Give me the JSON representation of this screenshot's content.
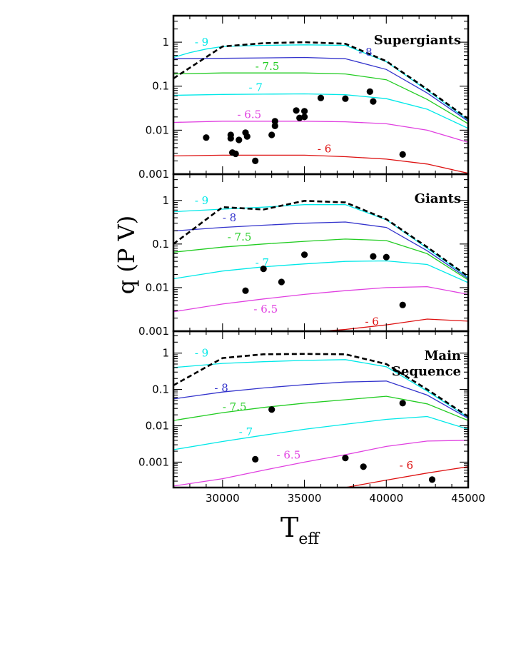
{
  "chart_data": {
    "type": "line",
    "xlabel": "T",
    "xlabel_sub": "eff",
    "ylabel": "q (P V)",
    "xlim": [
      27000,
      45000
    ],
    "xticks": [
      30000,
      35000,
      40000,
      45000
    ],
    "x_minor_step": 1000,
    "colors": {
      "-9": "#00e8e8",
      "-8": "#3333cc",
      "-7.5": "#22cc22",
      "-7": "#00e8e8",
      "-6.5": "#e040e0",
      "-6": "#dd1111",
      "envelope": "#000000",
      "points": "#000000"
    },
    "panels": [
      {
        "title": [
          "Supergiants"
        ],
        "ylim": [
          0.001,
          4
        ],
        "yticks": [
          0.001,
          0.01,
          0.1,
          1
        ],
        "ytick_labels": [
          "0.001",
          "0.01",
          "0.1",
          "1"
        ],
        "series": [
          {
            "name": "-9",
            "label": "- 9",
            "x": [
              27000,
              28000,
              29000,
              30000,
              32500,
              35000,
              37500,
              40000,
              42500,
              45000
            ],
            "y": [
              0.45,
              0.58,
              0.7,
              0.8,
              0.85,
              0.87,
              0.85,
              0.36,
              0.08,
              0.017
            ],
            "label_at": [
              28300,
              1.0
            ]
          },
          {
            "name": "-8",
            "label": "- 8",
            "x": [
              27000,
              30000,
              32500,
              35000,
              37500,
              40000,
              42500,
              45000
            ],
            "y": [
              0.42,
              0.43,
              0.44,
              0.45,
              0.42,
              0.24,
              0.07,
              0.016
            ],
            "label_at": [
              38300,
              0.6
            ]
          },
          {
            "name": "-7.5",
            "label": "- 7.5",
            "x": [
              27000,
              30000,
              32500,
              35000,
              37500,
              40000,
              42500,
              45000
            ],
            "y": [
              0.19,
              0.2,
              0.2,
              0.2,
              0.19,
              0.14,
              0.05,
              0.014
            ],
            "label_at": [
              32000,
              0.28
            ]
          },
          {
            "name": "-7",
            "label": "- 7",
            "x": [
              27000,
              30000,
              32500,
              35000,
              37500,
              40000,
              42500,
              45000
            ],
            "y": [
              0.062,
              0.065,
              0.066,
              0.067,
              0.064,
              0.052,
              0.03,
              0.011
            ],
            "label_at": [
              31600,
              0.093
            ]
          },
          {
            "name": "-6.5",
            "label": "- 6.5",
            "x": [
              27000,
              30000,
              32500,
              35000,
              37500,
              40000,
              42500,
              45000
            ],
            "y": [
              0.015,
              0.016,
              0.016,
              0.016,
              0.0155,
              0.014,
              0.01,
              0.0053
            ],
            "label_at": [
              30900,
              0.0225
            ]
          },
          {
            "name": "-6",
            "label": "- 6",
            "x": [
              27000,
              30000,
              32500,
              35000,
              37500,
              40000,
              42500,
              45000
            ],
            "y": [
              0.0026,
              0.0027,
              0.0027,
              0.0027,
              0.0025,
              0.0022,
              0.0017,
              0.00105
            ],
            "label_at": [
              35800,
              0.0038
            ]
          },
          {
            "name": "envelope",
            "dashed": true,
            "x": [
              27000,
              30000,
              32500,
              35000,
              37500,
              40000,
              42500,
              45000
            ],
            "y": [
              0.15,
              0.8,
              0.95,
              1.0,
              0.92,
              0.37,
              0.085,
              0.018
            ]
          }
        ],
        "points": {
          "x": [
            29000,
            30500,
            30500,
            30600,
            30800,
            31000,
            31400,
            31500,
            32000,
            33000,
            33200,
            33200,
            34500,
            34700,
            35000,
            35000,
            36000,
            37500,
            39000,
            39200,
            41000
          ],
          "y": [
            0.0068,
            0.0078,
            0.0065,
            0.0031,
            0.0029,
            0.006,
            0.0088,
            0.0072,
            0.002,
            0.0078,
            0.016,
            0.0125,
            0.028,
            0.019,
            0.027,
            0.02,
            0.054,
            0.052,
            0.075,
            0.045,
            0.0028
          ]
        }
      },
      {
        "title": [
          "Giants"
        ],
        "ylim": [
          0.001,
          4
        ],
        "yticks": [
          0.001,
          0.01,
          0.1,
          1
        ],
        "ytick_labels": [
          "0.001",
          "0.01",
          "0.1",
          "1"
        ],
        "series": [
          {
            "name": "-9",
            "label": "- 9",
            "x": [
              27000,
              30000,
              32500,
              35000,
              37500,
              40000,
              42500,
              45000
            ],
            "y": [
              0.55,
              0.63,
              0.7,
              0.8,
              0.8,
              0.36,
              0.08,
              0.017
            ],
            "label_at": [
              28300,
              1.0
            ]
          },
          {
            "name": "-8",
            "label": "- 8",
            "x": [
              27000,
              30000,
              32500,
              35000,
              37500,
              40000,
              42500,
              45000
            ],
            "y": [
              0.2,
              0.24,
              0.27,
              0.3,
              0.32,
              0.24,
              0.07,
              0.016
            ],
            "label_at": [
              30000,
              0.4
            ]
          },
          {
            "name": "-7.5",
            "label": "- 7.5",
            "x": [
              27000,
              30000,
              32500,
              35000,
              37500,
              40000,
              42500,
              45000
            ],
            "y": [
              0.065,
              0.085,
              0.1,
              0.115,
              0.13,
              0.12,
              0.06,
              0.015
            ],
            "label_at": [
              30300,
              0.145
            ]
          },
          {
            "name": "-7",
            "label": "- 7",
            "x": [
              27000,
              30000,
              32500,
              35000,
              37500,
              40000,
              42500,
              45000
            ],
            "y": [
              0.016,
              0.024,
              0.03,
              0.035,
              0.04,
              0.041,
              0.034,
              0.013
            ],
            "label_at": [
              32000,
              0.037
            ]
          },
          {
            "name": "-6.5",
            "label": "- 6.5",
            "x": [
              27000,
              30000,
              32500,
              35000,
              37500,
              40000,
              42500,
              45000
            ],
            "y": [
              0.0028,
              0.0042,
              0.0055,
              0.007,
              0.0085,
              0.01,
              0.0105,
              0.007
            ],
            "label_at": [
              31900,
              0.0032
            ]
          },
          {
            "name": "-6",
            "label": "- 6",
            "x": [
              36000,
              37500,
              40000,
              42500,
              45000
            ],
            "y": [
              0.001,
              0.0011,
              0.0014,
              0.0019,
              0.0017
            ],
            "label_at": [
              38700,
              0.00165
            ]
          },
          {
            "name": "envelope",
            "dashed": true,
            "x": [
              27000,
              30000,
              32500,
              35000,
              37500,
              40000,
              42500,
              45000
            ],
            "y": [
              0.1,
              0.7,
              0.62,
              0.98,
              0.9,
              0.37,
              0.085,
              0.018
            ]
          }
        ],
        "points": {
          "x": [
            31400,
            32500,
            33600,
            35000,
            39200,
            40000,
            41000
          ],
          "y": [
            0.0085,
            0.027,
            0.0135,
            0.057,
            0.052,
            0.05,
            0.004
          ]
        }
      },
      {
        "title": [
          "Main",
          "Sequence"
        ],
        "ylim": [
          0.0002,
          4
        ],
        "yticks": [
          0.001,
          0.01,
          0.1,
          1
        ],
        "ytick_labels": [
          "0.001",
          "0.01",
          "0.1",
          "1"
        ],
        "series": [
          {
            "name": "-9",
            "label": "- 9",
            "x": [
              27000,
              30000,
              32500,
              35000,
              37500,
              40000,
              42500,
              45000
            ],
            "y": [
              0.4,
              0.52,
              0.58,
              0.63,
              0.66,
              0.42,
              0.09,
              0.017
            ],
            "label_at": [
              28300,
              1.0
            ]
          },
          {
            "name": "-8",
            "label": "- 8",
            "x": [
              27000,
              30000,
              32500,
              35000,
              37500,
              40000,
              42500,
              45000
            ],
            "y": [
              0.055,
              0.085,
              0.11,
              0.135,
              0.16,
              0.17,
              0.07,
              0.016
            ],
            "label_at": [
              29500,
              0.11
            ]
          },
          {
            "name": "-7.5",
            "label": "- 7.5",
            "x": [
              27000,
              30000,
              32500,
              35000,
              37500,
              40000,
              42500,
              45000
            ],
            "y": [
              0.014,
              0.023,
              0.032,
              0.042,
              0.052,
              0.065,
              0.04,
              0.014
            ],
            "label_at": [
              30000,
              0.033
            ]
          },
          {
            "name": "-7",
            "label": "- 7",
            "x": [
              27000,
              30000,
              32500,
              35000,
              37500,
              40000,
              42500,
              45000
            ],
            "y": [
              0.0022,
              0.0037,
              0.0055,
              0.008,
              0.011,
              0.015,
              0.018,
              0.008
            ],
            "label_at": [
              31000,
              0.0068
            ]
          },
          {
            "name": "-6.5",
            "label": "- 6.5",
            "x": [
              27000,
              30000,
              32500,
              35000,
              37500,
              40000,
              42500,
              45000
            ],
            "y": [
              0.00022,
              0.00035,
              0.0006,
              0.001,
              0.0016,
              0.0027,
              0.0038,
              0.004
            ],
            "label_at": [
              33300,
              0.00155
            ]
          },
          {
            "name": "-6",
            "label": "- 6",
            "x": [
              37500,
              40000,
              42500,
              45000
            ],
            "y": [
              0.0002,
              0.00032,
              0.0005,
              0.00075
            ],
            "label_at": [
              40800,
              0.00082
            ]
          },
          {
            "name": "envelope",
            "dashed": true,
            "x": [
              27000,
              30000,
              32500,
              35000,
              37500,
              40000,
              42500,
              45000
            ],
            "y": [
              0.13,
              0.73,
              0.93,
              0.95,
              0.93,
              0.5,
              0.1,
              0.018
            ]
          }
        ],
        "points": {
          "x": [
            32000,
            33000,
            37500,
            38600,
            41000,
            42800
          ],
          "y": [
            0.0012,
            0.028,
            0.0013,
            0.00075,
            0.042,
            0.00033
          ]
        }
      }
    ]
  }
}
